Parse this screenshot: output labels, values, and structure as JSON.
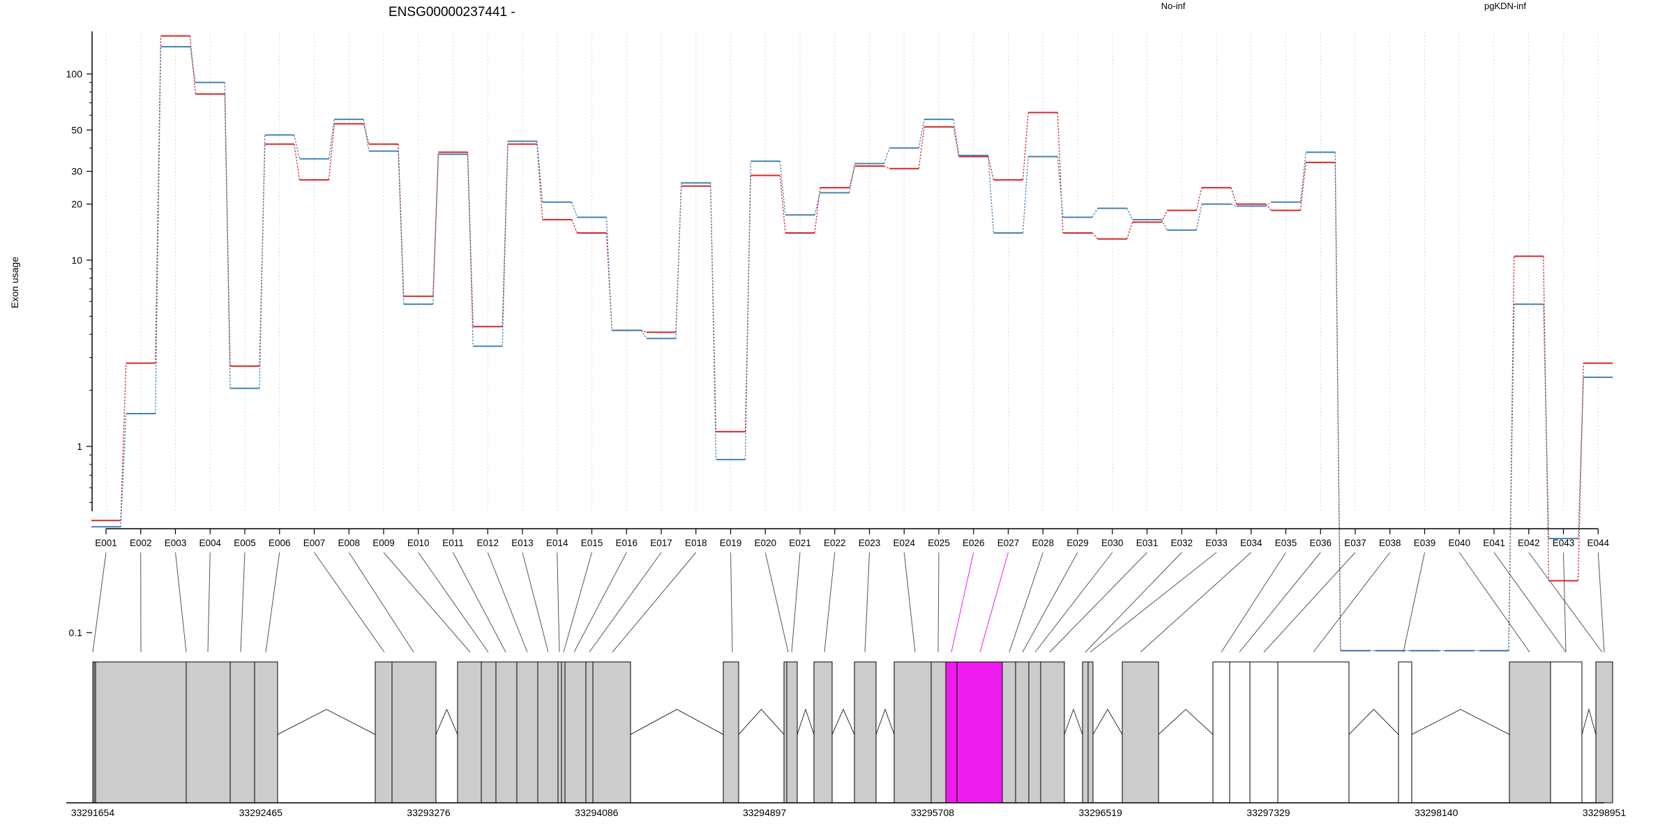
{
  "chart_data": {
    "type": "line",
    "title": "ENSG00000237441 -",
    "ylabel": "Exon usage",
    "xlabel": "",
    "yscale": "log",
    "ylim": [
      0.07,
      200
    ],
    "yticks": [
      0.1,
      1,
      10,
      20,
      30,
      50,
      100
    ],
    "ytick_labels": [
      "0.1",
      "1",
      "10",
      "20",
      "30",
      "50",
      "100"
    ],
    "grid": "vertical dotted lines at each exon",
    "legend_position": "top",
    "categories": [
      "E001",
      "E002",
      "E003",
      "E004",
      "E005",
      "E006",
      "E007",
      "E008",
      "E009",
      "E010",
      "E011",
      "E012",
      "E013",
      "E014",
      "E015",
      "E016",
      "E017",
      "E018",
      "E019",
      "E020",
      "E021",
      "E022",
      "E023",
      "E024",
      "E025",
      "E026",
      "E027",
      "E028",
      "E029",
      "E030",
      "E031",
      "E032",
      "E033",
      "E034",
      "E035",
      "E036",
      "E037",
      "E038",
      "E039",
      "E040",
      "E041",
      "E042",
      "E043",
      "E044"
    ],
    "series": [
      {
        "name": "No-inf",
        "color": "#d62728",
        "values": [
          0.4,
          2.8,
          160,
          78,
          2.7,
          42,
          27,
          54,
          42,
          6.4,
          38,
          4.4,
          42,
          16.5,
          14,
          4.2,
          4.1,
          25,
          1.2,
          28.5,
          14,
          24.5,
          32,
          31,
          52,
          36,
          27,
          62,
          14,
          13,
          16,
          18.5,
          24.5,
          20,
          18.5,
          33.5,
          0.08,
          0.08,
          0.08,
          0.08,
          0.08,
          10.5,
          0.19,
          2.8
        ]
      },
      {
        "name": "pgKDN-inf",
        "color": "#4682b4",
        "values": [
          0.37,
          1.5,
          140,
          90,
          2.05,
          47,
          35,
          57,
          38.5,
          5.8,
          37,
          3.45,
          43.5,
          20.5,
          17,
          4.2,
          3.8,
          26,
          0.85,
          34,
          17.5,
          23,
          33,
          40,
          57,
          36.5,
          14,
          36,
          17,
          19,
          16.5,
          14.5,
          20,
          19.5,
          20.5,
          38,
          0.08,
          0.08,
          0.08,
          0.08,
          0.08,
          5.8,
          0.32,
          2.35
        ]
      }
    ],
    "genome_axis": {
      "labels": [
        "33291654",
        "33292465",
        "33293276",
        "33294086",
        "33294897",
        "33295708",
        "33296519",
        "33297329",
        "33298140",
        "33298951"
      ]
    },
    "highlighted_exons": [
      "E026",
      "E027"
    ],
    "highlight_color": "#ee1dee"
  }
}
